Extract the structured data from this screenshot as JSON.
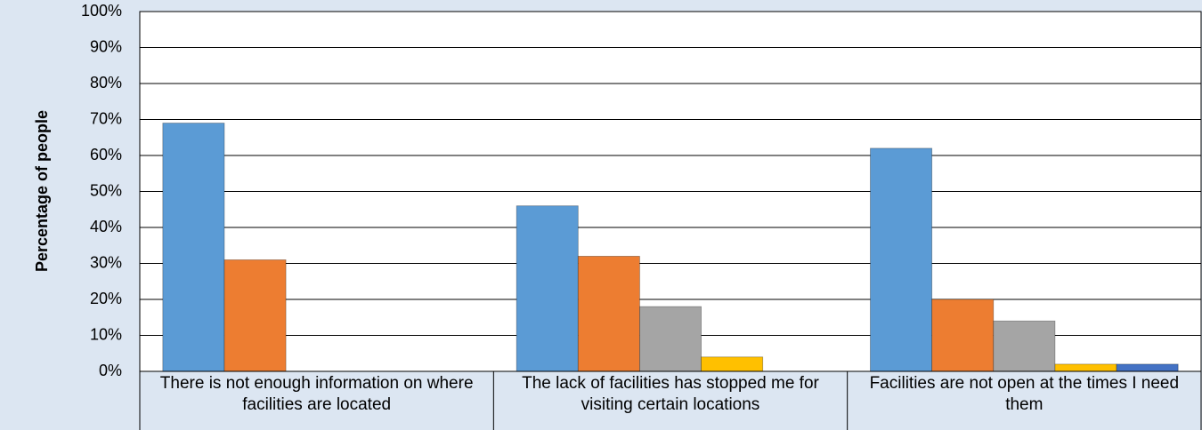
{
  "chart_data": {
    "type": "bar",
    "y_label": "Percentage of people",
    "categories": [
      "There is not enough information on where facilities are located",
      "The lack of facilities has stopped me for visiting certain locations",
      "Facilities are not open at the times I need them"
    ],
    "series": [
      {
        "color": "#5b9bd5",
        "values": [
          69,
          46,
          62
        ]
      },
      {
        "color": "#ed7d31",
        "values": [
          31,
          32,
          20
        ]
      },
      {
        "color": "#a5a5a5",
        "values": [
          0,
          18,
          14
        ]
      },
      {
        "color": "#ffc000",
        "values": [
          0,
          4,
          2
        ]
      },
      {
        "color": "#4472c4",
        "values": [
          0,
          0,
          2
        ]
      }
    ],
    "ylim": [
      0,
      100
    ],
    "yticks": [
      {
        "value": 0,
        "label": "0%"
      },
      {
        "value": 10,
        "label": "10%"
      },
      {
        "value": 20,
        "label": "20%"
      },
      {
        "value": 30,
        "label": "30%"
      },
      {
        "value": 40,
        "label": "40%"
      },
      {
        "value": 50,
        "label": "50%"
      },
      {
        "value": 60,
        "label": "60%"
      },
      {
        "value": 70,
        "label": "70%"
      },
      {
        "value": 80,
        "label": "80%"
      },
      {
        "value": 90,
        "label": "90%"
      },
      {
        "value": 100,
        "label": "100%"
      }
    ],
    "grid": true
  }
}
